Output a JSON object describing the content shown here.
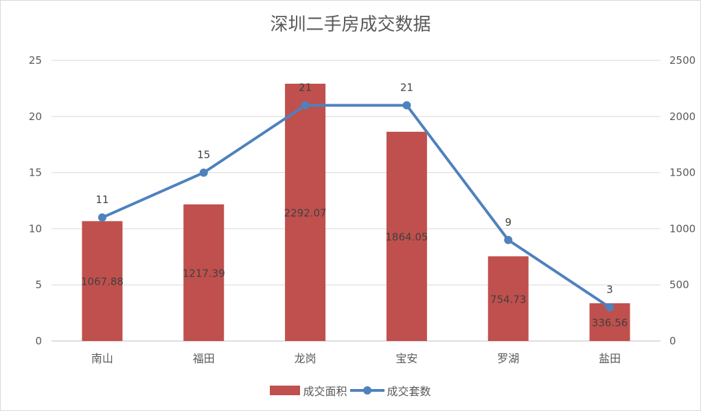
{
  "chart_data": {
    "type": "bar+line",
    "title": "深圳二手房成交数据",
    "categories": [
      "南山",
      "福田",
      "龙岗",
      "宝安",
      "罗湖",
      "盐田"
    ],
    "series": [
      {
        "name": "成交面积",
        "type": "bar",
        "axis": "right",
        "color": "#c0504d",
        "values": [
          1067.88,
          1217.39,
          2292.07,
          1864.05,
          754.73,
          336.56
        ],
        "labels": [
          "1067.88",
          "1217.39",
          "2292.07",
          "1864.05",
          "754.73",
          "336.56"
        ]
      },
      {
        "name": "成交套数",
        "type": "line",
        "axis": "left",
        "color": "#4f81bd",
        "values": [
          11,
          15,
          21,
          21,
          9,
          3
        ],
        "labels": [
          "11",
          "15",
          "21",
          "21",
          "9",
          "3"
        ]
      }
    ],
    "y_left": {
      "min": 0,
      "max": 25,
      "ticks": [
        "0",
        "5",
        "10",
        "15",
        "20",
        "25"
      ]
    },
    "y_right": {
      "min": 0,
      "max": 2500,
      "ticks": [
        "0",
        "500",
        "1000",
        "1500",
        "2000",
        "2500"
      ]
    },
    "grid": true,
    "legend": "bottom"
  }
}
